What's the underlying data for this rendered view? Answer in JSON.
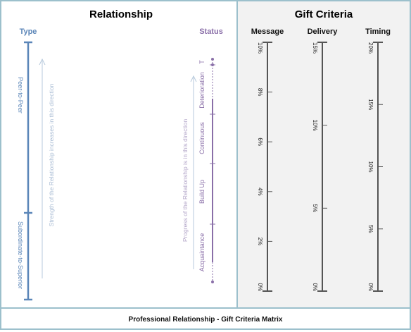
{
  "relationship": {
    "title": "Relationship",
    "type_label": "Type",
    "status_label": "Status",
    "type_segments": [
      "Peer-to-Peer",
      "Subordinate-to-Superior"
    ],
    "type_arrow_text": "Strength of the Relationship increases in this direction",
    "status_segments": [
      "Acquaintance",
      "Build Up",
      "Continuous",
      "Deterioration",
      "T"
    ],
    "status_arrow_text": "Progress of the Relationship is in this direction"
  },
  "gift_criteria": {
    "title": "Gift Criteria",
    "scales": [
      {
        "label": "Message",
        "ticks": [
          "10%",
          "8%",
          "6%",
          "4%",
          "2%",
          "0%"
        ]
      },
      {
        "label": "Delivery",
        "ticks": [
          "15%",
          "10%",
          "5%",
          "0%"
        ]
      },
      {
        "label": "Timing",
        "ticks": [
          "20%",
          "15%",
          "10%",
          "5%",
          "0%"
        ]
      }
    ]
  },
  "footer": {
    "caption": "Professional Relationship - Gift Criteria Matrix"
  },
  "colors": {
    "frame": "#9cc0cc",
    "gift_panel_bg": "#f2f2f2",
    "type_blue": "#5b86b8",
    "status_purple": "#8a6fa8",
    "arrow_gray": "#b7c9dc",
    "scale_line": "#555555"
  }
}
